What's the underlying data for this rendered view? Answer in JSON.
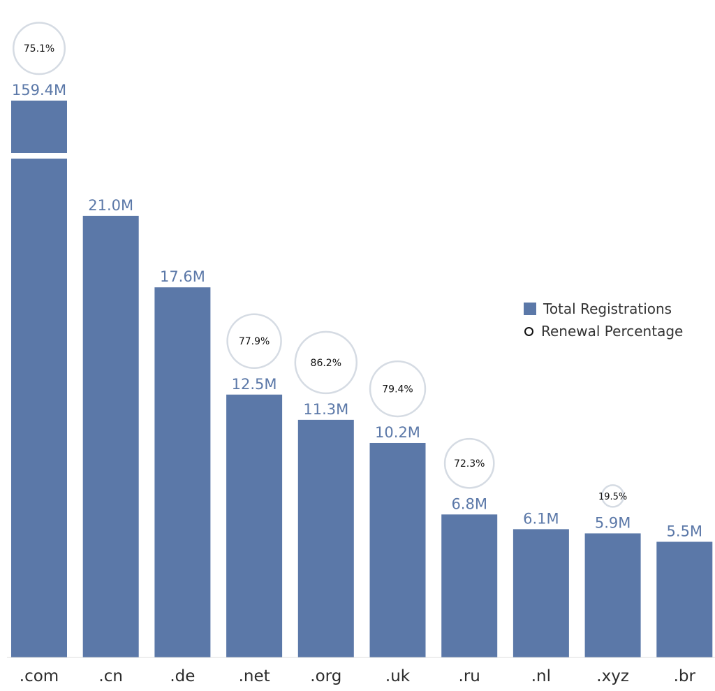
{
  "chart_data": {
    "type": "bar",
    "categories": [
      ".com",
      ".cn",
      ".de",
      ".net",
      ".org",
      ".uk",
      ".ru",
      ".nl",
      ".xyz",
      ".br"
    ],
    "series": [
      {
        "name": "Total Registrations",
        "values": [
          159.4,
          21.0,
          17.6,
          12.5,
          11.3,
          10.2,
          6.8,
          6.1,
          5.9,
          5.5
        ],
        "labels": [
          "159.4M",
          "21.0M",
          "17.6M",
          "12.5M",
          "11.3M",
          "10.2M",
          "6.8M",
          "6.1M",
          "5.9M",
          "5.5M"
        ],
        "color": "#5b78a8"
      },
      {
        "name": "Renewal Percentage",
        "values": [
          75.1,
          null,
          null,
          77.9,
          86.2,
          79.4,
          72.3,
          null,
          19.5,
          null
        ],
        "labels": [
          "75.1%",
          null,
          null,
          "77.9%",
          "86.2%",
          "79.4%",
          "72.3%",
          null,
          "19.5%",
          null
        ],
        "color": "#d5dbe3"
      }
    ],
    "axis_break": true,
    "legend_position": "right",
    "grid": false
  }
}
